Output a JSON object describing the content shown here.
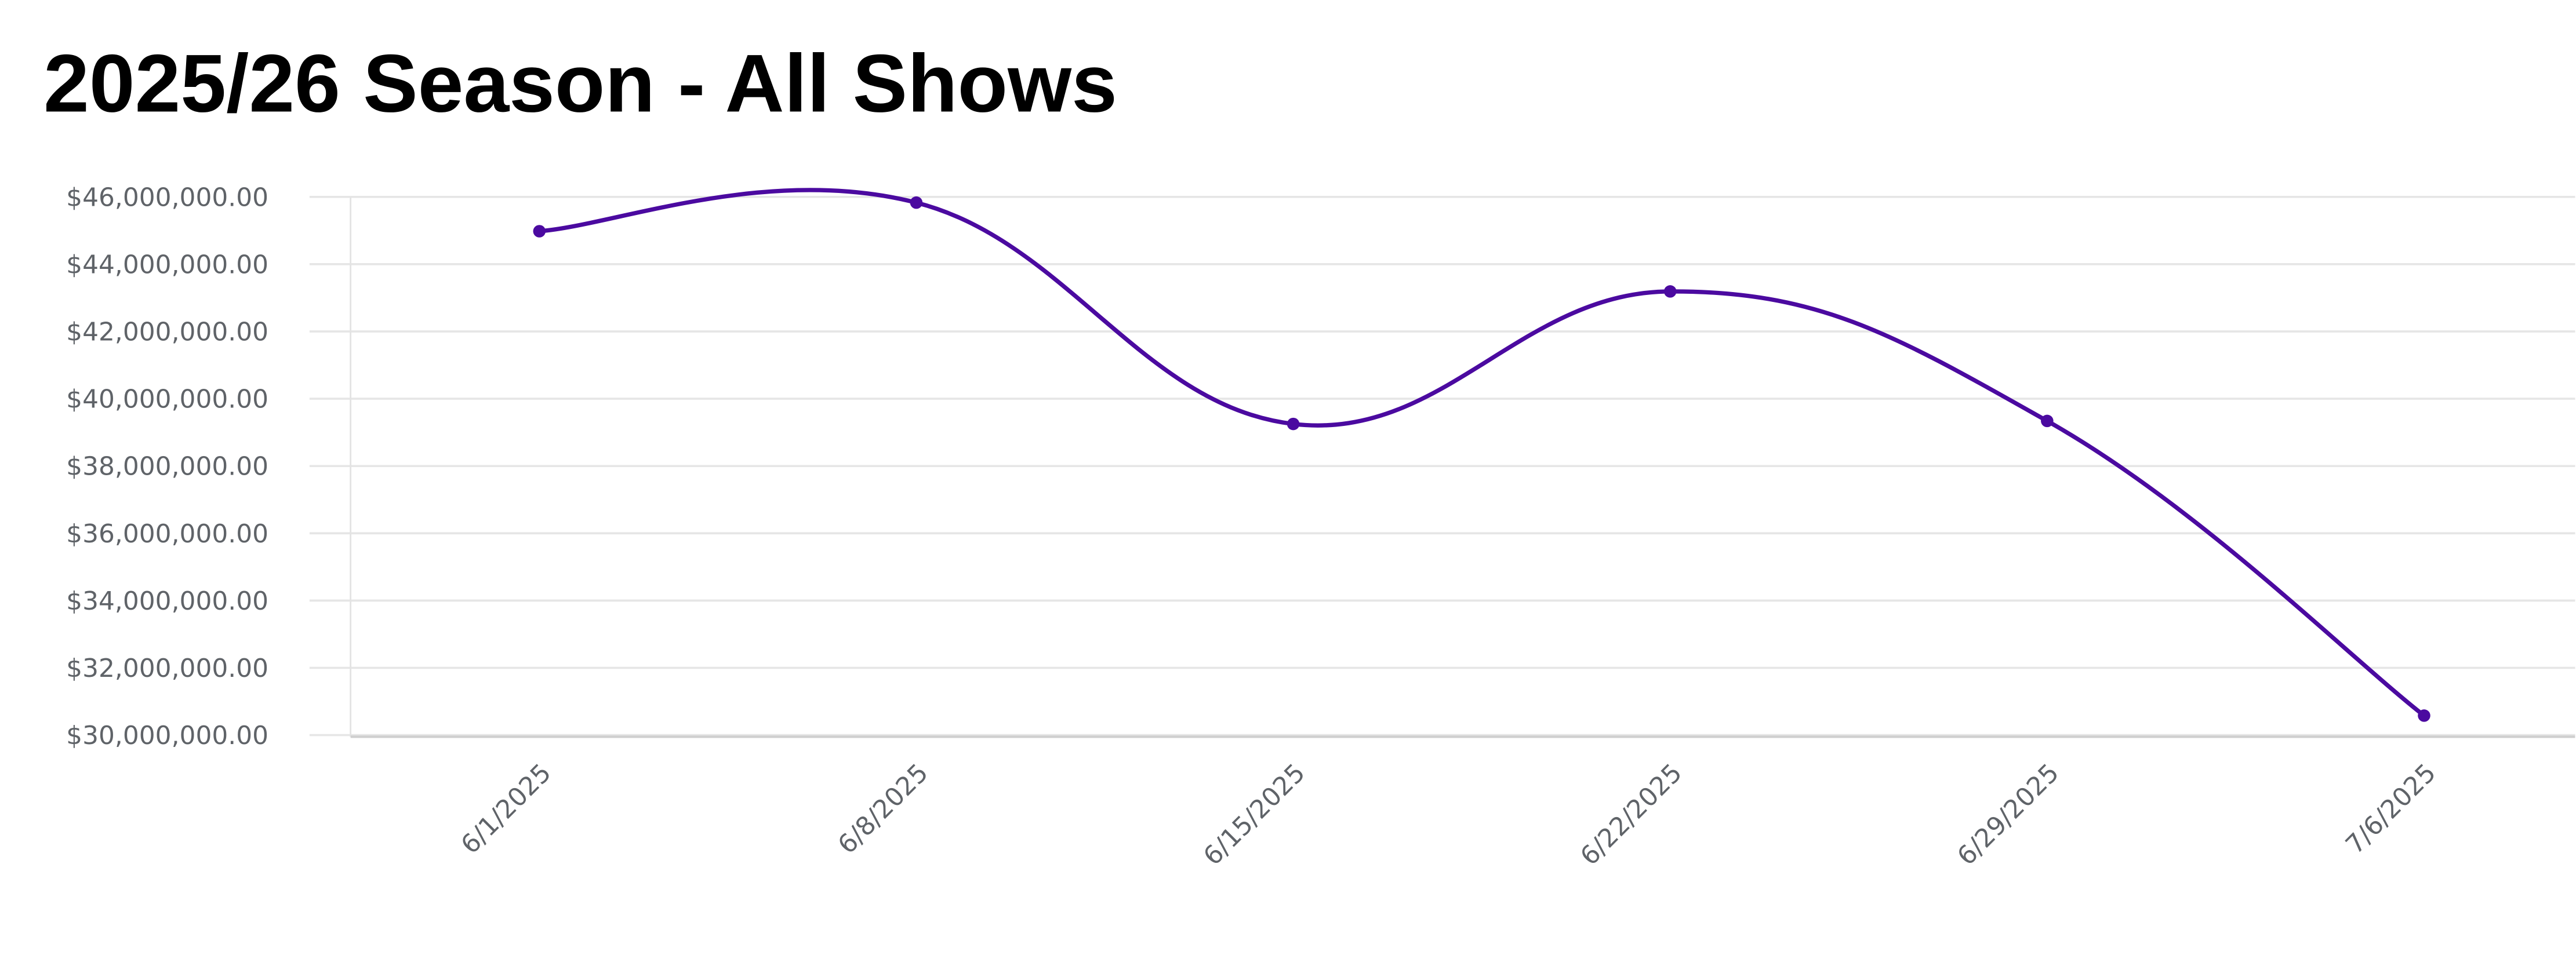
{
  "chart_data": {
    "type": "line",
    "title": "2025/26 Season - All Shows",
    "xlabel": "",
    "ylabel": "",
    "categories": [
      "6/1/2025",
      "6/8/2025",
      "6/15/2025",
      "6/22/2025",
      "6/29/2025",
      "7/6/2025"
    ],
    "series": [
      {
        "name": "All Shows",
        "values": [
          44980000,
          45830000,
          39250000,
          43190000,
          39340000,
          30580000
        ],
        "color": "#4b0aa0"
      }
    ],
    "ylim": [
      30000000,
      46000000
    ],
    "yticks": [
      30000000,
      32000000,
      34000000,
      36000000,
      38000000,
      40000000,
      42000000,
      44000000,
      46000000
    ],
    "ytick_labels": [
      "$30,000,000.00",
      "$32,000,000.00",
      "$34,000,000.00",
      "$36,000,000.00",
      "$38,000,000.00",
      "$40,000,000.00",
      "$42,000,000.00",
      "$44,000,000.00",
      "$46,000,000.00"
    ],
    "grid": true,
    "legend": "none",
    "smooth": true
  }
}
